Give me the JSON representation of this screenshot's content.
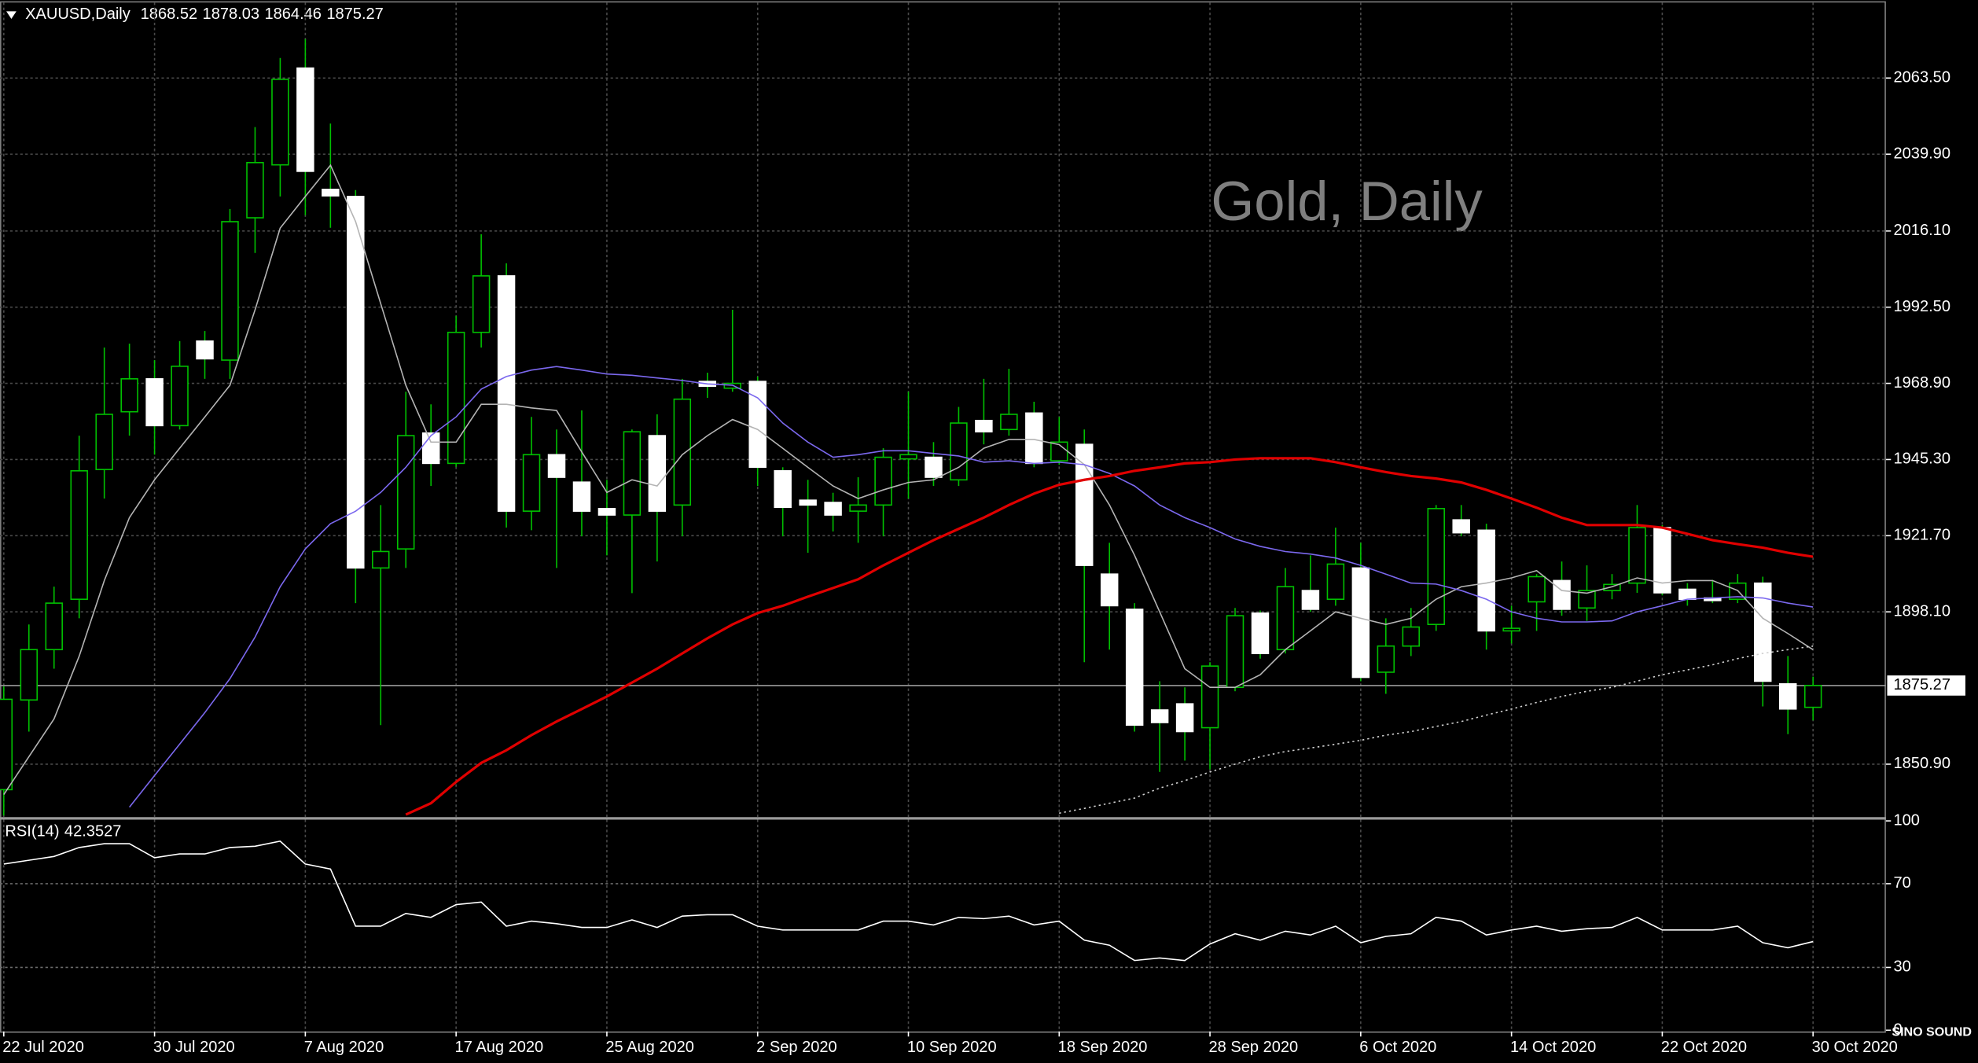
{
  "chart_data": [
    {
      "type": "candlestick",
      "title": "XAUUSD,Daily",
      "watermark": "Gold, Daily",
      "logo": "SINO SOUND",
      "categories": [
        "22 Jul 2020",
        null,
        null,
        null,
        null,
        null,
        "30 Jul 2020",
        null,
        null,
        null,
        null,
        null,
        "7 Aug 2020",
        null,
        null,
        null,
        null,
        null,
        "17 Aug 2020",
        null,
        null,
        null,
        null,
        null,
        "25 Aug 2020",
        null,
        null,
        null,
        null,
        null,
        "2 Sep 2020",
        null,
        null,
        null,
        null,
        null,
        "10 Sep 2020",
        null,
        null,
        null,
        null,
        null,
        "18 Sep 2020",
        null,
        null,
        null,
        null,
        null,
        "28 Sep 2020",
        null,
        null,
        null,
        null,
        null,
        "6 Oct 2020",
        null,
        null,
        null,
        null,
        null,
        "14 Oct 2020",
        null,
        null,
        null,
        null,
        null,
        "22 Oct 2020",
        null,
        null,
        null,
        null,
        null,
        "30 Oct 2020"
      ],
      "open": [
        1843,
        1870.8,
        1886.4,
        1902,
        1942.2,
        1960.1,
        1970.3,
        1955.8,
        1982,
        1976.1,
        2020.2,
        2036.6,
        2066.6,
        2029,
        2026.8,
        1911.7,
        1917.6,
        1953.5,
        1944.1,
        1984.7,
        2002.2,
        1929.3,
        1946.8,
        1938.3,
        1930.1,
        1928.1,
        1952.7,
        1931.2,
        1969.5,
        1967.4,
        1969.5,
        1941.8,
        1932.7,
        1932,
        1929.3,
        1931.2,
        1945.5,
        1946,
        1939,
        1957.4,
        1954.6,
        1959.7,
        1944.9,
        1950,
        1909.8,
        1898.9,
        1867.7,
        1869.6,
        1862.2,
        1874.7,
        1897.7,
        1886.4,
        1904.7,
        1902,
        1911.7,
        1879.4,
        1887.5,
        1894.2,
        1926.6,
        1923.4,
        1892.2,
        1901.2,
        1907.8,
        1899.3,
        1904.7,
        1907,
        1924.2,
        1905.1,
        1902.4,
        1902,
        1907,
        1875.8,
        1868.52
      ],
      "high": [
        1875,
        1894.2,
        1905.9,
        1952.7,
        1980,
        1981.2,
        1976.1,
        1982,
        1985.1,
        2022.9,
        2048.3,
        2069.7,
        2075.6,
        2049.4,
        2028.8,
        1931.2,
        1966.3,
        1962.4,
        1989.8,
        2015.1,
        2006.1,
        1958.5,
        1954.6,
        1960.5,
        1939,
        1954.6,
        1959.3,
        1970.3,
        1972.2,
        1991.7,
        1971,
        1942.9,
        1939,
        1935,
        1939.8,
        1948.8,
        1966.3,
        1950.7,
        1961.6,
        1970.3,
        1973.4,
        1963.2,
        1958.5,
        1954.6,
        1919.5,
        1900.8,
        1876.6,
        1874.7,
        1882.5,
        1899.3,
        1898.5,
        1911.7,
        1915.6,
        1924.2,
        1919.5,
        1896.1,
        1899.3,
        1931.2,
        1931.2,
        1925.4,
        1900,
        1909.8,
        1913.7,
        1912.5,
        1909.8,
        1931.2,
        1925,
        1907,
        1908,
        1909.8,
        1909,
        1884.4,
        1878.03
      ],
      "low": [
        1835,
        1861,
        1880.5,
        1896.1,
        1933.2,
        1952.7,
        1946.8,
        1954.6,
        1970.3,
        1970.3,
        2009.3,
        2026.8,
        2021,
        2017.1,
        1900.8,
        1863,
        1911.7,
        1937.1,
        1943,
        1980,
        1924.2,
        1923.4,
        1911.7,
        1921.5,
        1915.6,
        1903.9,
        1913.7,
        1921.5,
        1964.4,
        1966.3,
        1937.1,
        1921.5,
        1916.4,
        1923,
        1919.5,
        1921.5,
        1933.2,
        1937.1,
        1937.1,
        1950,
        1952.7,
        1942.9,
        1943.7,
        1882.5,
        1886.4,
        1861,
        1848.5,
        1852,
        1849.3,
        1873.5,
        1883.6,
        1885.2,
        1898.1,
        1900,
        1876.6,
        1872.7,
        1884.4,
        1892.2,
        1921.5,
        1886.4,
        1888.3,
        1892.2,
        1896.9,
        1895.3,
        1902,
        1904,
        1903.2,
        1900,
        1900.8,
        1900.8,
        1868.8,
        1860.2,
        1864.46
      ],
      "close": [
        1871,
        1886.4,
        1900.8,
        1941.8,
        1959.3,
        1970.3,
        1955.8,
        1974.2,
        1976.5,
        2019,
        2037.3,
        2063.1,
        2034.6,
        2027,
        1911.7,
        1916.8,
        1952.7,
        1944.1,
        1984.7,
        2002.2,
        1929.3,
        1946.8,
        1939.8,
        1929.3,
        1928.1,
        1953.9,
        1929.3,
        1964,
        1968,
        1968.9,
        1942.9,
        1930.5,
        1931.2,
        1928.1,
        1931.2,
        1946,
        1946.8,
        1939.8,
        1956.6,
        1953.9,
        1959.3,
        1944.1,
        1950.7,
        1912.5,
        1900,
        1863,
        1863.8,
        1861,
        1881.3,
        1896.9,
        1885.2,
        1905.9,
        1898.9,
        1912.9,
        1877.8,
        1887.5,
        1893.4,
        1930.1,
        1922.6,
        1892.2,
        1893,
        1909,
        1898.9,
        1904.7,
        1906.6,
        1924.2,
        1904,
        1902,
        1901.6,
        1907,
        1876.6,
        1868,
        1875.27
      ],
      "up_color": "#000000",
      "down_color": "#ffffff",
      "wick_color": "#00c000",
      "series": [
        {
          "color": "#b4b4b4",
          "style": "solid",
          "values": [
            1841.5,
            1853.2,
            1864.9,
            1884.4,
            1907.8,
            1927.3,
            1939,
            1948.8,
            1958.5,
            1968.3,
            1991.7,
            2017,
            2026.8,
            2036.5,
            2019,
            1993.6,
            1968.3,
            1950.7,
            1950.7,
            1962.4,
            1962.4,
            1961.3,
            1960.5,
            1947.6,
            1935.1,
            1939,
            1937.1,
            1946.8,
            1952.7,
            1957.7,
            1954.6,
            1948.8,
            1942.9,
            1937.1,
            1933.2,
            1935.9,
            1938.2,
            1939,
            1942.9,
            1948.8,
            1951.5,
            1951.5,
            1949.9,
            1943.7,
            1931.2,
            1915.6,
            1898.1,
            1880.5,
            1874.7,
            1874.7,
            1878.6,
            1886.4,
            1892.2,
            1898.1,
            1896.1,
            1894.2,
            1896.1,
            1902,
            1905.9,
            1907,
            1908.6,
            1910.9,
            1904.7,
            1903.9,
            1905.9,
            1908.6,
            1907,
            1907.8,
            1907.8,
            1904.7,
            1896.1,
            1891.4,
            1886.4
          ]
        },
        {
          "color": "#7b68ee",
          "style": "solid",
          "values": [
            null,
            null,
            null,
            null,
            null,
            1837.6,
            1847.4,
            1857.1,
            1866.9,
            1877.4,
            1890.3,
            1905.9,
            1917.6,
            1925.4,
            1929.3,
            1935.1,
            1942.9,
            1952.7,
            1958.5,
            1967.1,
            1971,
            1973,
            1974.1,
            1973,
            1971.8,
            1971.4,
            1970.6,
            1969.8,
            1968.7,
            1968.3,
            1964.4,
            1956.6,
            1950.7,
            1946,
            1946.8,
            1948,
            1948,
            1947.2,
            1946.4,
            1944.5,
            1944.9,
            1944.1,
            1944.5,
            1943.7,
            1941,
            1937.1,
            1931.2,
            1927.3,
            1924.2,
            1920.7,
            1918.4,
            1916.8,
            1916,
            1914.8,
            1912.5,
            1909.8,
            1907,
            1906.7,
            1904.7,
            1902,
            1898.1,
            1896.1,
            1895,
            1895,
            1895.3,
            1898.1,
            1900,
            1902,
            1902.4,
            1902.8,
            1902.4,
            1900.8,
            1899.6
          ]
        },
        {
          "color": "#e00000",
          "style": "thick",
          "values": [
            null,
            null,
            null,
            null,
            null,
            null,
            null,
            null,
            null,
            null,
            null,
            null,
            null,
            null,
            null,
            null,
            1835.3,
            1838.8,
            1845.4,
            1851.3,
            1855.2,
            1859.9,
            1864.1,
            1868,
            1871.9,
            1876.2,
            1880.5,
            1885.2,
            1889.9,
            1894.2,
            1897.7,
            1900,
            1902.8,
            1905.5,
            1908.2,
            1912.5,
            1916.4,
            1920.3,
            1923.8,
            1927.3,
            1931.2,
            1934.7,
            1937.5,
            1939,
            1940.2,
            1941.8,
            1942.9,
            1944.1,
            1944.5,
            1945.3,
            1945.7,
            1945.7,
            1945.7,
            1944.5,
            1942.9,
            1941.4,
            1940.2,
            1939.4,
            1938.2,
            1935.9,
            1933.2,
            1930.4,
            1927.3,
            1925,
            1925,
            1925,
            1924.2,
            1922.3,
            1920.3,
            1919.1,
            1918,
            1916.4,
            1915.2
          ]
        },
        {
          "color": "#d0d0d0",
          "style": "dotted",
          "values": [
            null,
            null,
            null,
            null,
            null,
            null,
            null,
            null,
            null,
            null,
            null,
            null,
            null,
            null,
            null,
            null,
            null,
            null,
            null,
            null,
            null,
            null,
            null,
            null,
            null,
            null,
            null,
            null,
            null,
            null,
            null,
            null,
            null,
            null,
            null,
            null,
            null,
            null,
            null,
            null,
            null,
            null,
            1835.7,
            1837.2,
            1838.8,
            1840.4,
            1843.5,
            1845.8,
            1848.5,
            1850.9,
            1853.2,
            1854.8,
            1855.9,
            1857.1,
            1858.3,
            1859.9,
            1861,
            1862.6,
            1864.1,
            1866.1,
            1868,
            1870,
            1871.9,
            1873.5,
            1874.7,
            1876.6,
            1878.6,
            1880.1,
            1881.7,
            1883.6,
            1885.2,
            1886.4,
            1887.5
          ]
        }
      ],
      "ylim": [
        1834.5,
        2086.9
      ],
      "yticks": [
        {
          "value": 2063.5,
          "label": "2063.50"
        },
        {
          "value": 2039.9,
          "label": "2039.90"
        },
        {
          "value": 2016.1,
          "label": "2016.10"
        },
        {
          "value": 1992.5,
          "label": "1992.50"
        },
        {
          "value": 1968.9,
          "label": "1968.90"
        },
        {
          "value": 1945.3,
          "label": "1945.30"
        },
        {
          "value": 1921.7,
          "label": "1921.70"
        },
        {
          "value": 1898.1,
          "label": "1898.10"
        },
        {
          "value": 1850.9,
          "label": "1850.90"
        }
      ],
      "grid": true
    },
    {
      "type": "line",
      "title": "RSI(14)",
      "series": [
        {
          "color": "#ffffff",
          "values": [
            79.4,
            81.2,
            83,
            87.3,
            89.1,
            89.1,
            82.4,
            84.2,
            84.2,
            87.3,
            87.9,
            90.3,
            79.4,
            77,
            49.7,
            49.7,
            55.8,
            53.9,
            60,
            61.2,
            49.7,
            52.1,
            50.9,
            49.1,
            49.1,
            52.7,
            49.1,
            54.5,
            55.2,
            55.2,
            49.7,
            47.9,
            47.9,
            47.9,
            47.9,
            52.1,
            52.1,
            50.3,
            53.9,
            53.3,
            54.5,
            50.3,
            52.1,
            43,
            40.6,
            33.3,
            34.5,
            33.3,
            41.2,
            46.1,
            43,
            47.3,
            45.5,
            49.7,
            41.8,
            44.8,
            46.1,
            53.9,
            52.1,
            45.5,
            47.9,
            49.7,
            47.3,
            48.5,
            49.1,
            53.9,
            47.9,
            47.9,
            47.9,
            49.7,
            41.8,
            39.4,
            42.3527
          ]
        }
      ],
      "ylim": [
        0,
        100
      ],
      "yticks": [
        100,
        70,
        30,
        0
      ],
      "grid_ticks": [
        70,
        30
      ]
    }
  ]
}
